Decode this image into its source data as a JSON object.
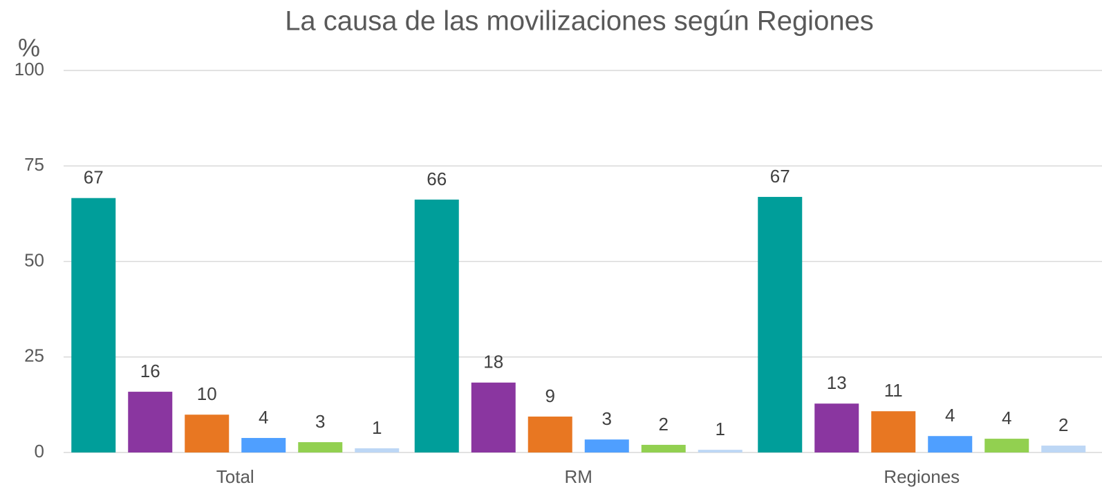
{
  "chart_data": {
    "type": "bar",
    "title": "La causa de las movilizaciones según Regiones",
    "y_label": "%",
    "categories": [
      "Total",
      "RM",
      "Regiones"
    ],
    "series": [
      {
        "color": "#009e9a",
        "values": [
          66.6,
          66.2,
          66.9
        ],
        "value_labels": [
          "67",
          "66",
          "67"
        ]
      },
      {
        "color": "#8a36a0",
        "values": [
          15.9,
          18.3,
          12.8
        ],
        "value_labels": [
          "16",
          "18",
          "13"
        ]
      },
      {
        "color": "#e87722",
        "values": [
          9.9,
          9.4,
          10.8
        ],
        "value_labels": [
          "10",
          "9",
          "11"
        ]
      },
      {
        "color": "#4f9fff",
        "values": [
          3.8,
          3.4,
          4.3
        ],
        "value_labels": [
          "4",
          "3",
          "4"
        ]
      },
      {
        "color": "#92d050",
        "values": [
          2.7,
          2.0,
          3.6
        ],
        "value_labels": [
          "3",
          "2",
          "4"
        ]
      },
      {
        "color": "#bdd7f5",
        "values": [
          1.1,
          0.7,
          1.8
        ],
        "value_labels": [
          "1",
          "1",
          "2"
        ]
      }
    ],
    "ylim": [
      0,
      100
    ],
    "yticks": [
      0,
      25,
      50,
      75,
      100
    ],
    "grid": true
  }
}
